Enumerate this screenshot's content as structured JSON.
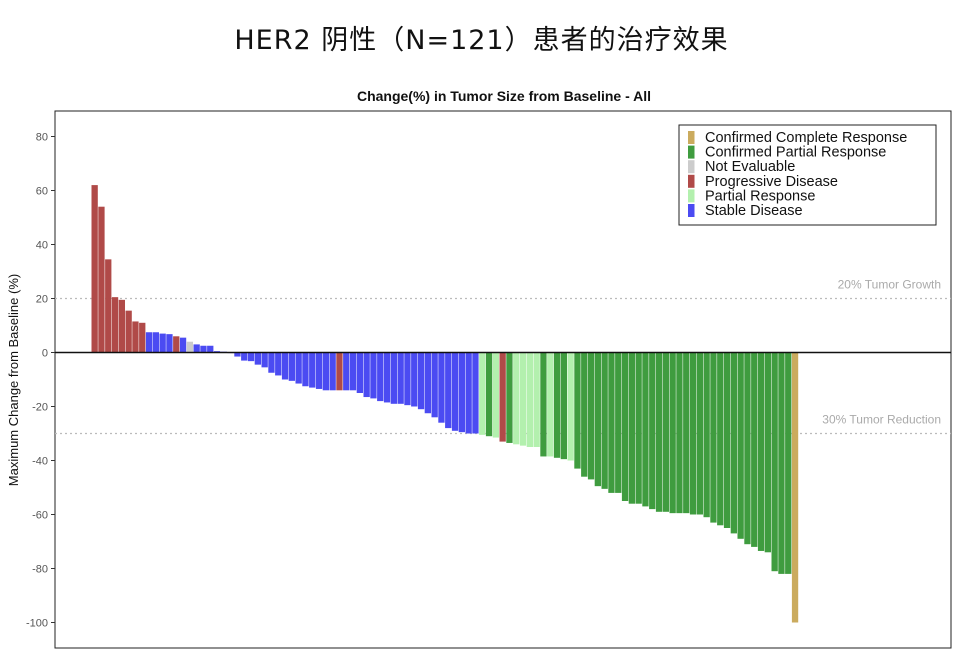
{
  "page": {
    "title": "HER2 阴性（N=121）患者的治疗效果"
  },
  "chart_data": {
    "type": "bar",
    "title": "Change(%) in Tumor Size from Baseline - All",
    "xlabel": "",
    "ylabel": "Maximum Change from Baseline (%)",
    "ylim": [
      -104,
      88
    ],
    "yticks": [
      80,
      60,
      40,
      20,
      0,
      -20,
      -40,
      -60,
      -80,
      -100
    ],
    "reference_lines": [
      {
        "value": 20,
        "label": "20% Tumor Growth"
      },
      {
        "value": -30,
        "label": "30% Tumor Reduction"
      }
    ],
    "legend": {
      "position": "top-right",
      "entries": [
        {
          "key": "CR",
          "label": "Confirmed Complete Response",
          "color": "#cbab5e"
        },
        {
          "key": "CPR",
          "label": "Confirmed Partial Response",
          "color": "#3f9c3f"
        },
        {
          "key": "NE",
          "label": "Not Evaluable",
          "color": "#cccccc"
        },
        {
          "key": "PD",
          "label": "Progressive Disease",
          "color": "#b04a48"
        },
        {
          "key": "PR",
          "label": "Partial Response",
          "color": "#b3f0ae"
        },
        {
          "key": "SD",
          "label": "Stable Disease",
          "color": "#4b4bf2"
        }
      ]
    },
    "bars": [
      {
        "v": 62,
        "c": "PD"
      },
      {
        "v": 54,
        "c": "PD"
      },
      {
        "v": 34.5,
        "c": "PD"
      },
      {
        "v": 20.5,
        "c": "PD"
      },
      {
        "v": 19.5,
        "c": "PD"
      },
      {
        "v": 15.5,
        "c": "PD"
      },
      {
        "v": 11.5,
        "c": "PD"
      },
      {
        "v": 11,
        "c": "PD"
      },
      {
        "v": 7.5,
        "c": "SD"
      },
      {
        "v": 7.5,
        "c": "SD"
      },
      {
        "v": 7,
        "c": "SD"
      },
      {
        "v": 6.8,
        "c": "SD"
      },
      {
        "v": 6,
        "c": "PD"
      },
      {
        "v": 5.5,
        "c": "SD"
      },
      {
        "v": 4,
        "c": "NE"
      },
      {
        "v": 3,
        "c": "SD"
      },
      {
        "v": 2.5,
        "c": "SD"
      },
      {
        "v": 2.5,
        "c": "SD"
      },
      {
        "v": 0.5,
        "c": "SD"
      },
      {
        "v": 0.3,
        "c": "SD"
      },
      {
        "v": 0,
        "c": "SD"
      },
      {
        "v": -1.5,
        "c": "SD"
      },
      {
        "v": -3,
        "c": "SD"
      },
      {
        "v": -3.2,
        "c": "SD"
      },
      {
        "v": -4.5,
        "c": "SD"
      },
      {
        "v": -5.5,
        "c": "SD"
      },
      {
        "v": -7.5,
        "c": "SD"
      },
      {
        "v": -8.5,
        "c": "SD"
      },
      {
        "v": -10,
        "c": "SD"
      },
      {
        "v": -10.5,
        "c": "SD"
      },
      {
        "v": -11.5,
        "c": "SD"
      },
      {
        "v": -12.5,
        "c": "SD"
      },
      {
        "v": -13,
        "c": "SD"
      },
      {
        "v": -13.5,
        "c": "SD"
      },
      {
        "v": -14,
        "c": "SD"
      },
      {
        "v": -14,
        "c": "SD"
      },
      {
        "v": -14,
        "c": "PD"
      },
      {
        "v": -14,
        "c": "SD"
      },
      {
        "v": -14,
        "c": "SD"
      },
      {
        "v": -15,
        "c": "SD"
      },
      {
        "v": -16.5,
        "c": "SD"
      },
      {
        "v": -17,
        "c": "SD"
      },
      {
        "v": -18,
        "c": "SD"
      },
      {
        "v": -18.5,
        "c": "SD"
      },
      {
        "v": -19,
        "c": "SD"
      },
      {
        "v": -19,
        "c": "SD"
      },
      {
        "v": -19.5,
        "c": "SD"
      },
      {
        "v": -20,
        "c": "SD"
      },
      {
        "v": -21,
        "c": "SD"
      },
      {
        "v": -22.5,
        "c": "SD"
      },
      {
        "v": -24,
        "c": "SD"
      },
      {
        "v": -26,
        "c": "SD"
      },
      {
        "v": -28,
        "c": "SD"
      },
      {
        "v": -29,
        "c": "SD"
      },
      {
        "v": -29.5,
        "c": "SD"
      },
      {
        "v": -30,
        "c": "SD"
      },
      {
        "v": -30,
        "c": "SD"
      },
      {
        "v": -30.5,
        "c": "PR"
      },
      {
        "v": -31,
        "c": "CPR"
      },
      {
        "v": -31.5,
        "c": "PR"
      },
      {
        "v": -33,
        "c": "PD"
      },
      {
        "v": -33.5,
        "c": "CPR"
      },
      {
        "v": -34,
        "c": "PR"
      },
      {
        "v": -34.5,
        "c": "PR"
      },
      {
        "v": -35,
        "c": "PR"
      },
      {
        "v": -35,
        "c": "PR"
      },
      {
        "v": -38.5,
        "c": "CPR"
      },
      {
        "v": -38.5,
        "c": "PR"
      },
      {
        "v": -39,
        "c": "CPR"
      },
      {
        "v": -39.5,
        "c": "CPR"
      },
      {
        "v": -40,
        "c": "PR"
      },
      {
        "v": -43,
        "c": "CPR"
      },
      {
        "v": -46,
        "c": "CPR"
      },
      {
        "v": -47,
        "c": "CPR"
      },
      {
        "v": -49.5,
        "c": "CPR"
      },
      {
        "v": -50.5,
        "c": "CPR"
      },
      {
        "v": -52,
        "c": "CPR"
      },
      {
        "v": -52,
        "c": "CPR"
      },
      {
        "v": -55,
        "c": "CPR"
      },
      {
        "v": -56,
        "c": "CPR"
      },
      {
        "v": -56,
        "c": "CPR"
      },
      {
        "v": -57,
        "c": "CPR"
      },
      {
        "v": -58,
        "c": "CPR"
      },
      {
        "v": -59,
        "c": "CPR"
      },
      {
        "v": -59,
        "c": "CPR"
      },
      {
        "v": -59.5,
        "c": "CPR"
      },
      {
        "v": -59.5,
        "c": "CPR"
      },
      {
        "v": -59.5,
        "c": "CPR"
      },
      {
        "v": -60,
        "c": "CPR"
      },
      {
        "v": -60,
        "c": "CPR"
      },
      {
        "v": -61,
        "c": "CPR"
      },
      {
        "v": -63,
        "c": "CPR"
      },
      {
        "v": -64,
        "c": "CPR"
      },
      {
        "v": -65,
        "c": "CPR"
      },
      {
        "v": -67,
        "c": "CPR"
      },
      {
        "v": -69,
        "c": "CPR"
      },
      {
        "v": -71,
        "c": "CPR"
      },
      {
        "v": -72,
        "c": "CPR"
      },
      {
        "v": -73.5,
        "c": "CPR"
      },
      {
        "v": -74,
        "c": "CPR"
      },
      {
        "v": -81,
        "c": "CPR"
      },
      {
        "v": -82,
        "c": "CPR"
      },
      {
        "v": -82,
        "c": "CPR"
      },
      {
        "v": -100,
        "c": "CR"
      }
    ]
  }
}
